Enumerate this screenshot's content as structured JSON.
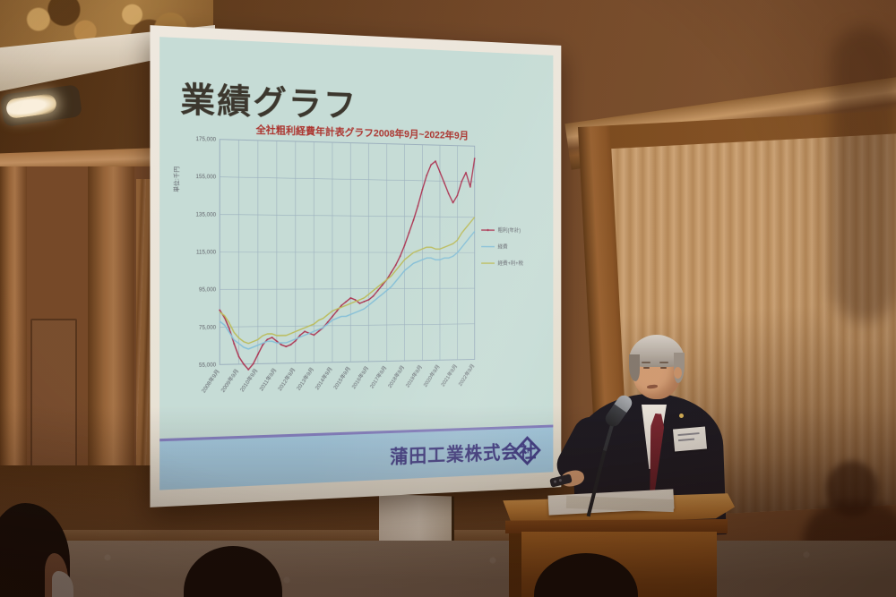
{
  "slide": {
    "title": "業績グラフ",
    "subtitle": "全社粗利経費年計表グラフ2008年9月~2022年9月",
    "footer": {
      "logo": "ZK",
      "company": "蒲田工業株式会社"
    }
  },
  "chart_data": {
    "type": "line",
    "title": "全社粗利経費年計表グラフ2008年9月~2022年9月",
    "y_axis_title": "単位:千円",
    "ylim": [
      55000,
      175000
    ],
    "ytick_step": 20000,
    "yticks": [
      "55,000",
      "75,000",
      "95,000",
      "115,000",
      "135,000",
      "155,000",
      "175,000"
    ],
    "x_tick_labels": [
      "2008年9月",
      "2009年9月",
      "2010年9月",
      "2011年9月",
      "2012年9月",
      "2013年9月",
      "2014年9月",
      "2015年9月",
      "2016年9月",
      "2017年9月",
      "2018年9月",
      "2019年9月",
      "2020年9月",
      "2021年9月",
      "2022年9月"
    ],
    "points_per_year": 4,
    "grid": true,
    "grid_color": "#9db6c7",
    "tick_color": "#5f6570",
    "legend_position": "right",
    "series": [
      {
        "name": "粗利(年計)",
        "color": "#ae3557",
        "marker": true,
        "values": [
          84000,
          80000,
          74000,
          66000,
          59000,
          55000,
          52000,
          55000,
          60000,
          65000,
          68000,
          69000,
          67000,
          65000,
          64000,
          65000,
          67000,
          70000,
          72000,
          71000,
          70000,
          72000,
          74000,
          77000,
          80000,
          83000,
          86000,
          88000,
          90000,
          89000,
          87000,
          88000,
          89000,
          91000,
          94000,
          97000,
          100000,
          104000,
          108000,
          113000,
          119000,
          126000,
          133000,
          141000,
          150000,
          158000,
          164000,
          166000,
          160000,
          154000,
          148000,
          143000,
          147000,
          155000,
          160000,
          152000,
          168000
        ]
      },
      {
        "name": "経費",
        "color": "#85c6e2",
        "marker": false,
        "values": [
          78000,
          76000,
          72000,
          68000,
          66000,
          64000,
          63000,
          64000,
          65000,
          66000,
          67000,
          67000,
          66000,
          66000,
          66000,
          67000,
          68000,
          69000,
          70000,
          71000,
          72000,
          73000,
          74000,
          76000,
          78000,
          79000,
          80000,
          80000,
          81000,
          82000,
          83000,
          84000,
          86000,
          88000,
          90000,
          92000,
          94000,
          96000,
          99000,
          102000,
          105000,
          107000,
          109000,
          110000,
          111000,
          112000,
          112000,
          111000,
          111000,
          112000,
          112000,
          113000,
          115000,
          118000,
          121000,
          124000,
          127000
        ]
      },
      {
        "name": "経費+利+税",
        "color": "#bec25e",
        "marker": false,
        "values": [
          83000,
          81000,
          77000,
          72000,
          69000,
          67000,
          66000,
          67000,
          68000,
          70000,
          71000,
          71000,
          70000,
          70000,
          70000,
          71000,
          72000,
          73000,
          74000,
          75000,
          76000,
          78000,
          79000,
          81000,
          83000,
          84000,
          85000,
          86000,
          87000,
          88000,
          89000,
          90000,
          92000,
          94000,
          96000,
          98000,
          100000,
          102000,
          105000,
          108000,
          111000,
          113000,
          115000,
          116000,
          117000,
          118000,
          118000,
          117000,
          117000,
          118000,
          119000,
          120000,
          122000,
          126000,
          129000,
          132000,
          135000
        ]
      }
    ]
  }
}
